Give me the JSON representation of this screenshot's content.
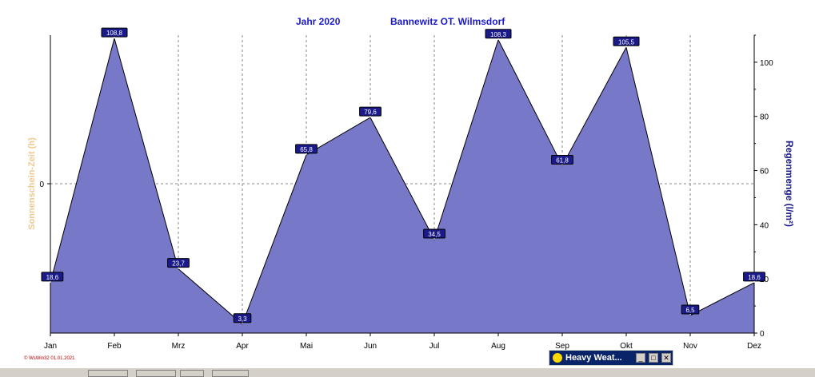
{
  "chart_data": {
    "type": "area",
    "title_year": "Jahr  2020",
    "title_location": "Bannewitz OT. Wilmsdorf",
    "ylabel_left": "Sonnenschein-Zeit  (h)",
    "ylabel_right": "Regenmenge  (l/m²)",
    "categories": [
      "Jan",
      "Feb",
      "Mrz",
      "Apr",
      "Mai",
      "Jun",
      "Jul",
      "Aug",
      "Sep",
      "Okt",
      "Nov",
      "Dez"
    ],
    "values": [
      18.6,
      108.8,
      23.7,
      3.3,
      65.8,
      79.6,
      34.5,
      108.3,
      61.8,
      105.5,
      6.5,
      18.6
    ],
    "value_labels": [
      "18,6",
      "108,8",
      "23,7",
      "3,3",
      "65,8",
      "79,6",
      "34,5",
      "108,3",
      "61,8",
      "105,5",
      "6,5",
      "18,6"
    ],
    "left_ticks": [
      "0"
    ],
    "right_ticks": [
      "0",
      "20",
      "40",
      "60",
      "80",
      "100"
    ],
    "ylim_right": [
      0,
      110
    ],
    "grid": true,
    "fill_color": "#7878c8",
    "line_color": "#000000"
  },
  "copyright": "© WsWin32  01.01.2021",
  "taskbar_window": {
    "title": "Heavy Weat...",
    "minimize": "_",
    "maximize": "□",
    "close": "✕",
    "icon": "sun-icon"
  }
}
